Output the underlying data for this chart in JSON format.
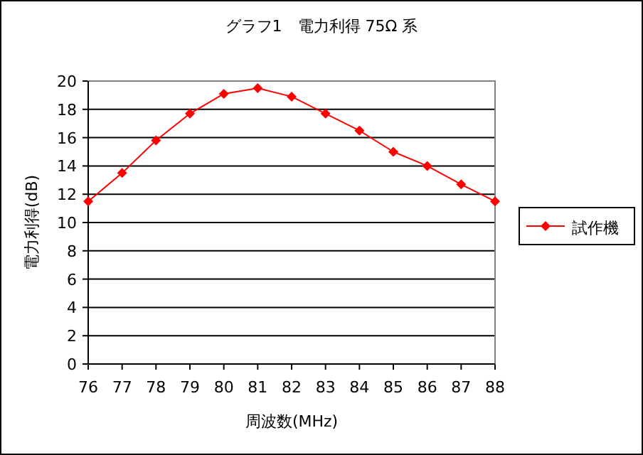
{
  "chart_data": {
    "type": "line",
    "title": "グラフ1　電力利得 75Ω 系",
    "xlabel": "周波数(MHz)",
    "ylabel": "電力利得(dB)",
    "x": [
      76,
      77,
      78,
      79,
      80,
      81,
      82,
      83,
      84,
      85,
      86,
      87,
      88
    ],
    "series": [
      {
        "name": "試作機",
        "color": "#ff0000",
        "values": [
          11.5,
          13.5,
          15.8,
          17.7,
          19.1,
          19.5,
          18.9,
          17.7,
          16.5,
          15.0,
          14.0,
          12.7,
          11.5
        ]
      }
    ],
    "xlim": [
      76,
      88
    ],
    "xticks": [
      76,
      77,
      78,
      79,
      80,
      81,
      82,
      83,
      84,
      85,
      86,
      87,
      88
    ],
    "ylim": [
      0,
      20
    ],
    "yticks": [
      0,
      2,
      4,
      6,
      8,
      10,
      12,
      14,
      16,
      18,
      20
    ],
    "grid": "y",
    "legend": "right",
    "marker": "diamond",
    "line_style": "solid"
  }
}
